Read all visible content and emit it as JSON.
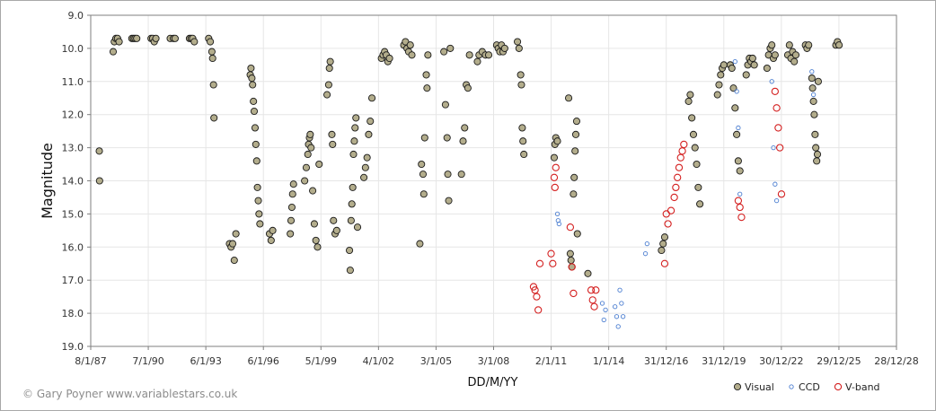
{
  "chart_data": {
    "type": "scatter",
    "title": "",
    "xlabel": "DD/M/YY",
    "ylabel": "Magnitude",
    "credit": "© Gary Poyner www.variablestars.co.uk",
    "y_inverted": true,
    "ylim": [
      9.0,
      19.0
    ],
    "xlim": [
      "8/1/87",
      "28/12/28"
    ],
    "x_ticks": [
      "8/1/87",
      "7/1/90",
      "6/1/93",
      "6/1/96",
      "5/1/99",
      "4/1/02",
      "3/1/05",
      "3/1/08",
      "2/1/11",
      "1/1/14",
      "31/12/16",
      "31/12/19",
      "30/12/22",
      "29/12/25",
      "28/12/28"
    ],
    "y_ticks": [
      "9.0",
      "10.0",
      "11.0",
      "12.0",
      "13.0",
      "14.0",
      "15.0",
      "16.0",
      "17.0",
      "18.0",
      "19.0"
    ],
    "grid": true,
    "legend_position": "bottom-right",
    "series": [
      {
        "name": "Visual",
        "color": "#b3ad8c",
        "stroke": "#1a1a1a",
        "marker": "filled-circle",
        "points": [
          [
            "1987-06-20",
            13.1
          ],
          [
            "1987-06-25",
            14.0
          ],
          [
            "1988-03-10",
            10.1
          ],
          [
            "1988-04-01",
            9.8
          ],
          [
            "1988-05-01",
            9.7
          ],
          [
            "1988-06-01",
            9.7
          ],
          [
            "1988-07-01",
            9.8
          ],
          [
            "1989-03-01",
            9.7
          ],
          [
            "1989-04-01",
            9.7
          ],
          [
            "1989-05-01",
            9.7
          ],
          [
            "1989-06-01",
            9.7
          ],
          [
            "1990-03-01",
            9.7
          ],
          [
            "1990-04-01",
            9.7
          ],
          [
            "1990-05-01",
            9.8
          ],
          [
            "1990-06-01",
            9.7
          ],
          [
            "1991-03-01",
            9.7
          ],
          [
            "1991-05-01",
            9.7
          ],
          [
            "1991-06-01",
            9.7
          ],
          [
            "1992-03-01",
            9.7
          ],
          [
            "1992-04-01",
            9.7
          ],
          [
            "1992-05-01",
            9.7
          ],
          [
            "1992-06-01",
            9.8
          ],
          [
            "1993-03-01",
            9.7
          ],
          [
            "1993-04-01",
            9.8
          ],
          [
            "1993-05-01",
            10.1
          ],
          [
            "1993-05-15",
            10.3
          ],
          [
            "1993-06-01",
            11.1
          ],
          [
            "1993-06-10",
            12.1
          ],
          [
            "1994-04-01",
            15.9
          ],
          [
            "1994-05-01",
            16.0
          ],
          [
            "1994-06-01",
            15.9
          ],
          [
            "1994-07-01",
            16.4
          ],
          [
            "1994-08-01",
            15.6
          ],
          [
            "1995-05-01",
            10.8
          ],
          [
            "1995-05-15",
            10.6
          ],
          [
            "1995-06-01",
            10.9
          ],
          [
            "1995-06-15",
            11.1
          ],
          [
            "1995-07-01",
            11.6
          ],
          [
            "1995-07-15",
            11.9
          ],
          [
            "1995-08-01",
            12.4
          ],
          [
            "1995-08-15",
            12.9
          ],
          [
            "1995-09-01",
            13.4
          ],
          [
            "1995-09-15",
            14.2
          ],
          [
            "1995-10-01",
            14.6
          ],
          [
            "1995-10-15",
            15.0
          ],
          [
            "1995-11-01",
            15.3
          ],
          [
            "1996-05-01",
            15.6
          ],
          [
            "1996-06-01",
            15.8
          ],
          [
            "1996-07-01",
            15.5
          ],
          [
            "1997-06-01",
            15.6
          ],
          [
            "1997-06-15",
            15.2
          ],
          [
            "1997-07-01",
            14.8
          ],
          [
            "1997-07-15",
            14.4
          ],
          [
            "1997-08-01",
            14.1
          ],
          [
            "1998-03-01",
            14.0
          ],
          [
            "1998-04-01",
            13.6
          ],
          [
            "1998-05-01",
            13.2
          ],
          [
            "1998-05-15",
            12.9
          ],
          [
            "1998-06-01",
            12.7
          ],
          [
            "1998-06-15",
            12.6
          ],
          [
            "1998-07-01",
            13.0
          ],
          [
            "1998-08-01",
            14.3
          ],
          [
            "1998-09-01",
            15.3
          ],
          [
            "1998-10-01",
            15.8
          ],
          [
            "1998-11-01",
            16.0
          ],
          [
            "1998-12-01",
            13.5
          ],
          [
            "1999-05-01",
            11.4
          ],
          [
            "1999-06-01",
            11.1
          ],
          [
            "1999-06-15",
            10.6
          ],
          [
            "1999-07-01",
            10.4
          ],
          [
            "1999-08-01",
            12.6
          ],
          [
            "1999-08-15",
            12.9
          ],
          [
            "1999-09-01",
            15.2
          ],
          [
            "1999-10-01",
            15.6
          ],
          [
            "1999-11-01",
            15.5
          ],
          [
            "2000-07-01",
            16.1
          ],
          [
            "2000-07-15",
            16.7
          ],
          [
            "2000-08-01",
            15.2
          ],
          [
            "2000-08-15",
            14.7
          ],
          [
            "2000-09-01",
            14.2
          ],
          [
            "2000-09-15",
            13.2
          ],
          [
            "2000-10-01",
            12.8
          ],
          [
            "2000-10-15",
            12.4
          ],
          [
            "2000-11-01",
            12.1
          ],
          [
            "2000-12-01",
            15.4
          ],
          [
            "2001-04-01",
            13.9
          ],
          [
            "2001-05-01",
            13.6
          ],
          [
            "2001-06-01",
            13.3
          ],
          [
            "2001-07-01",
            12.6
          ],
          [
            "2001-08-01",
            12.2
          ],
          [
            "2001-09-01",
            11.5
          ],
          [
            "2002-03-01",
            10.3
          ],
          [
            "2002-04-01",
            10.2
          ],
          [
            "2002-05-01",
            10.1
          ],
          [
            "2002-06-01",
            10.2
          ],
          [
            "2002-07-01",
            10.4
          ],
          [
            "2002-08-01",
            10.3
          ],
          [
            "2003-05-01",
            9.9
          ],
          [
            "2003-06-01",
            9.8
          ],
          [
            "2003-07-01",
            10.0
          ],
          [
            "2003-08-01",
            10.1
          ],
          [
            "2003-09-01",
            9.9
          ],
          [
            "2003-10-01",
            10.2
          ],
          [
            "2004-03-01",
            15.9
          ],
          [
            "2004-04-01",
            13.5
          ],
          [
            "2004-05-01",
            13.8
          ],
          [
            "2004-05-15",
            14.4
          ],
          [
            "2004-06-01",
            12.7
          ],
          [
            "2004-07-01",
            10.8
          ],
          [
            "2004-07-15",
            11.2
          ],
          [
            "2004-08-01",
            10.2
          ],
          [
            "2005-06-01",
            10.1
          ],
          [
            "2005-07-01",
            11.7
          ],
          [
            "2005-08-01",
            12.7
          ],
          [
            "2005-08-15",
            13.8
          ],
          [
            "2005-09-01",
            14.6
          ],
          [
            "2005-10-01",
            10.0
          ],
          [
            "2006-05-01",
            13.8
          ],
          [
            "2006-06-01",
            12.8
          ],
          [
            "2006-07-01",
            12.4
          ],
          [
            "2006-08-01",
            11.1
          ],
          [
            "2006-09-01",
            11.2
          ],
          [
            "2006-10-01",
            10.2
          ],
          [
            "2007-03-01",
            10.4
          ],
          [
            "2007-04-01",
            10.2
          ],
          [
            "2007-06-01",
            10.1
          ],
          [
            "2007-08-01",
            10.2
          ],
          [
            "2007-10-01",
            10.2
          ],
          [
            "2008-03-01",
            9.9
          ],
          [
            "2008-04-01",
            10.0
          ],
          [
            "2008-05-01",
            10.1
          ],
          [
            "2008-06-01",
            9.9
          ],
          [
            "2008-07-01",
            10.1
          ],
          [
            "2008-08-01",
            10.0
          ],
          [
            "2009-04-01",
            9.8
          ],
          [
            "2009-05-01",
            10.0
          ],
          [
            "2009-06-01",
            10.8
          ],
          [
            "2009-06-15",
            11.1
          ],
          [
            "2009-07-01",
            12.4
          ],
          [
            "2009-07-15",
            12.8
          ],
          [
            "2009-08-01",
            13.2
          ],
          [
            "2011-03-01",
            13.3
          ],
          [
            "2011-03-15",
            12.9
          ],
          [
            "2011-04-01",
            12.7
          ],
          [
            "2011-05-01",
            12.8
          ],
          [
            "2011-12-01",
            11.5
          ],
          [
            "2012-01-01",
            16.2
          ],
          [
            "2012-01-15",
            16.4
          ],
          [
            "2012-02-01",
            16.6
          ],
          [
            "2012-03-01",
            14.4
          ],
          [
            "2012-03-15",
            13.9
          ],
          [
            "2012-04-01",
            13.1
          ],
          [
            "2012-04-15",
            12.6
          ],
          [
            "2012-05-01",
            12.2
          ],
          [
            "2012-05-15",
            15.6
          ],
          [
            "2012-12-01",
            16.8
          ],
          [
            "2016-10-01",
            16.1
          ],
          [
            "2016-11-01",
            15.9
          ],
          [
            "2016-12-01",
            15.7
          ],
          [
            "2018-03-01",
            11.6
          ],
          [
            "2018-04-01",
            11.4
          ],
          [
            "2018-05-01",
            12.1
          ],
          [
            "2018-06-01",
            12.6
          ],
          [
            "2018-07-01",
            13.0
          ],
          [
            "2018-08-01",
            13.5
          ],
          [
            "2018-09-01",
            14.2
          ],
          [
            "2018-10-01",
            14.7
          ],
          [
            "2019-09-01",
            11.4
          ],
          [
            "2019-10-01",
            11.1
          ],
          [
            "2019-11-01",
            10.8
          ],
          [
            "2019-12-01",
            10.6
          ],
          [
            "2020-01-01",
            10.5
          ],
          [
            "2020-05-01",
            10.5
          ],
          [
            "2020-06-01",
            10.6
          ],
          [
            "2020-07-01",
            11.2
          ],
          [
            "2020-08-01",
            11.8
          ],
          [
            "2020-09-01",
            12.6
          ],
          [
            "2020-10-01",
            13.4
          ],
          [
            "2020-11-01",
            13.7
          ],
          [
            "2021-03-01",
            10.8
          ],
          [
            "2021-04-01",
            10.5
          ],
          [
            "2021-05-01",
            10.3
          ],
          [
            "2021-06-01",
            10.4
          ],
          [
            "2021-07-01",
            10.3
          ],
          [
            "2021-08-01",
            10.5
          ],
          [
            "2022-04-01",
            10.6
          ],
          [
            "2022-05-01",
            10.2
          ],
          [
            "2022-06-01",
            10.0
          ],
          [
            "2022-07-01",
            9.9
          ],
          [
            "2022-08-01",
            10.3
          ],
          [
            "2022-09-01",
            10.2
          ],
          [
            "2023-05-01",
            10.2
          ],
          [
            "2023-06-01",
            9.9
          ],
          [
            "2023-07-01",
            10.3
          ],
          [
            "2023-08-01",
            10.1
          ],
          [
            "2023-09-01",
            10.4
          ],
          [
            "2023-10-01",
            10.2
          ],
          [
            "2024-04-01",
            9.9
          ],
          [
            "2024-05-01",
            10.0
          ],
          [
            "2024-06-01",
            9.9
          ],
          [
            "2024-08-01",
            10.9
          ],
          [
            "2024-08-15",
            11.2
          ],
          [
            "2024-09-01",
            11.6
          ],
          [
            "2024-09-15",
            12.0
          ],
          [
            "2024-10-01",
            12.6
          ],
          [
            "2024-10-15",
            13.0
          ],
          [
            "2024-11-01",
            13.4
          ],
          [
            "2024-11-15",
            13.2
          ],
          [
            "2024-12-01",
            11.0
          ],
          [
            "2025-11-01",
            9.9
          ],
          [
            "2025-12-01",
            9.8
          ],
          [
            "2026-01-01",
            9.9
          ]
        ]
      },
      {
        "name": "CCD",
        "color": "#4d7fd1",
        "marker": "small-open-circle",
        "points": [
          [
            "2011-05-01",
            15.0
          ],
          [
            "2011-05-15",
            15.2
          ],
          [
            "2011-06-01",
            15.3
          ],
          [
            "2013-09-01",
            17.7
          ],
          [
            "2013-10-01",
            18.2
          ],
          [
            "2013-11-01",
            17.9
          ],
          [
            "2014-05-01",
            17.8
          ],
          [
            "2014-06-01",
            18.1
          ],
          [
            "2014-07-01",
            18.4
          ],
          [
            "2014-08-01",
            17.3
          ],
          [
            "2014-09-01",
            17.7
          ],
          [
            "2014-10-01",
            18.1
          ],
          [
            "2015-12-01",
            16.2
          ],
          [
            "2016-01-01",
            15.9
          ],
          [
            "2020-08-01",
            10.4
          ],
          [
            "2020-09-01",
            11.3
          ],
          [
            "2020-10-01",
            12.4
          ],
          [
            "2020-11-01",
            14.4
          ],
          [
            "2022-07-01",
            11.0
          ],
          [
            "2022-08-01",
            13.0
          ],
          [
            "2022-09-01",
            14.1
          ],
          [
            "2022-10-01",
            14.6
          ],
          [
            "2024-08-01",
            10.7
          ],
          [
            "2024-09-01",
            11.4
          ]
        ]
      },
      {
        "name": "V-band",
        "color": "#d42020",
        "marker": "open-circle",
        "points": [
          [
            "2010-02-01",
            17.2
          ],
          [
            "2010-03-01",
            17.3
          ],
          [
            "2010-04-01",
            17.5
          ],
          [
            "2010-05-01",
            17.9
          ],
          [
            "2010-06-01",
            16.5
          ],
          [
            "2011-01-01",
            16.2
          ],
          [
            "2011-02-01",
            16.5
          ],
          [
            "2011-03-01",
            13.9
          ],
          [
            "2011-03-15",
            14.2
          ],
          [
            "2011-04-01",
            13.6
          ],
          [
            "2012-01-01",
            15.4
          ],
          [
            "2012-02-01",
            16.6
          ],
          [
            "2012-03-01",
            17.4
          ],
          [
            "2013-02-01",
            17.3
          ],
          [
            "2013-03-01",
            17.6
          ],
          [
            "2013-04-01",
            17.8
          ],
          [
            "2013-05-01",
            17.3
          ],
          [
            "2016-12-01",
            16.5
          ],
          [
            "2017-01-01",
            15.0
          ],
          [
            "2017-02-01",
            15.3
          ],
          [
            "2017-04-01",
            14.9
          ],
          [
            "2017-06-01",
            14.5
          ],
          [
            "2017-07-01",
            14.2
          ],
          [
            "2017-08-01",
            13.9
          ],
          [
            "2017-09-01",
            13.6
          ],
          [
            "2017-10-01",
            13.3
          ],
          [
            "2017-11-01",
            13.1
          ],
          [
            "2017-12-01",
            12.9
          ],
          [
            "2020-10-01",
            14.6
          ],
          [
            "2020-11-01",
            14.8
          ],
          [
            "2020-12-01",
            15.1
          ],
          [
            "2022-09-01",
            11.3
          ],
          [
            "2022-10-01",
            11.8
          ],
          [
            "2022-11-01",
            12.4
          ],
          [
            "2022-12-01",
            13.0
          ],
          [
            "2023-01-01",
            14.4
          ]
        ]
      }
    ]
  }
}
